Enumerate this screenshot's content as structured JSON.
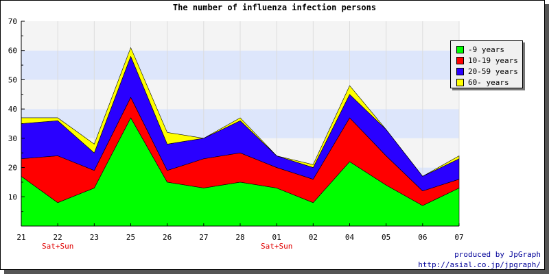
{
  "chart_data": {
    "type": "area",
    "stacked": true,
    "title": "The number of influenza infection persons",
    "categories": [
      "21",
      "22",
      "23",
      "25",
      "26",
      "27",
      "28",
      "01",
      "02",
      "04",
      "05",
      "06",
      "07"
    ],
    "category_notes": [
      "",
      "Sat+Sun",
      "",
      "",
      "",
      "",
      "",
      "Sat+Sun",
      "",
      "",
      "",
      "",
      ""
    ],
    "series": [
      {
        "name": "-9 years",
        "color": "#00ff00",
        "values": [
          17,
          8,
          13,
          37,
          15,
          13,
          15,
          13,
          8,
          22,
          14,
          7,
          13
        ]
      },
      {
        "name": "10-19 years",
        "color": "#ff0000",
        "values": [
          6,
          16,
          6,
          7,
          4,
          10,
          10,
          7,
          8,
          15,
          10,
          5,
          3
        ]
      },
      {
        "name": "20-59 years",
        "color": "#2a00ff",
        "values": [
          12,
          12,
          6,
          14,
          9,
          7,
          11,
          4,
          4,
          8,
          9,
          5,
          7
        ]
      },
      {
        "name": "60- years",
        "color": "#ffff00",
        "values": [
          2,
          1,
          3,
          3,
          4,
          0,
          1,
          0,
          1,
          3,
          0,
          0,
          1
        ]
      }
    ],
    "ylim": [
      0,
      70
    ],
    "yticks": [
      10,
      20,
      30,
      40,
      50,
      60,
      70
    ],
    "grid": true,
    "legend_position": "top-right",
    "band_colors": [
      "#f4f4f4",
      "#dde6fb"
    ]
  },
  "credits": {
    "line1": "produced by JpGraph",
    "line2": "http://asial.co.jp/jpgraph/"
  }
}
